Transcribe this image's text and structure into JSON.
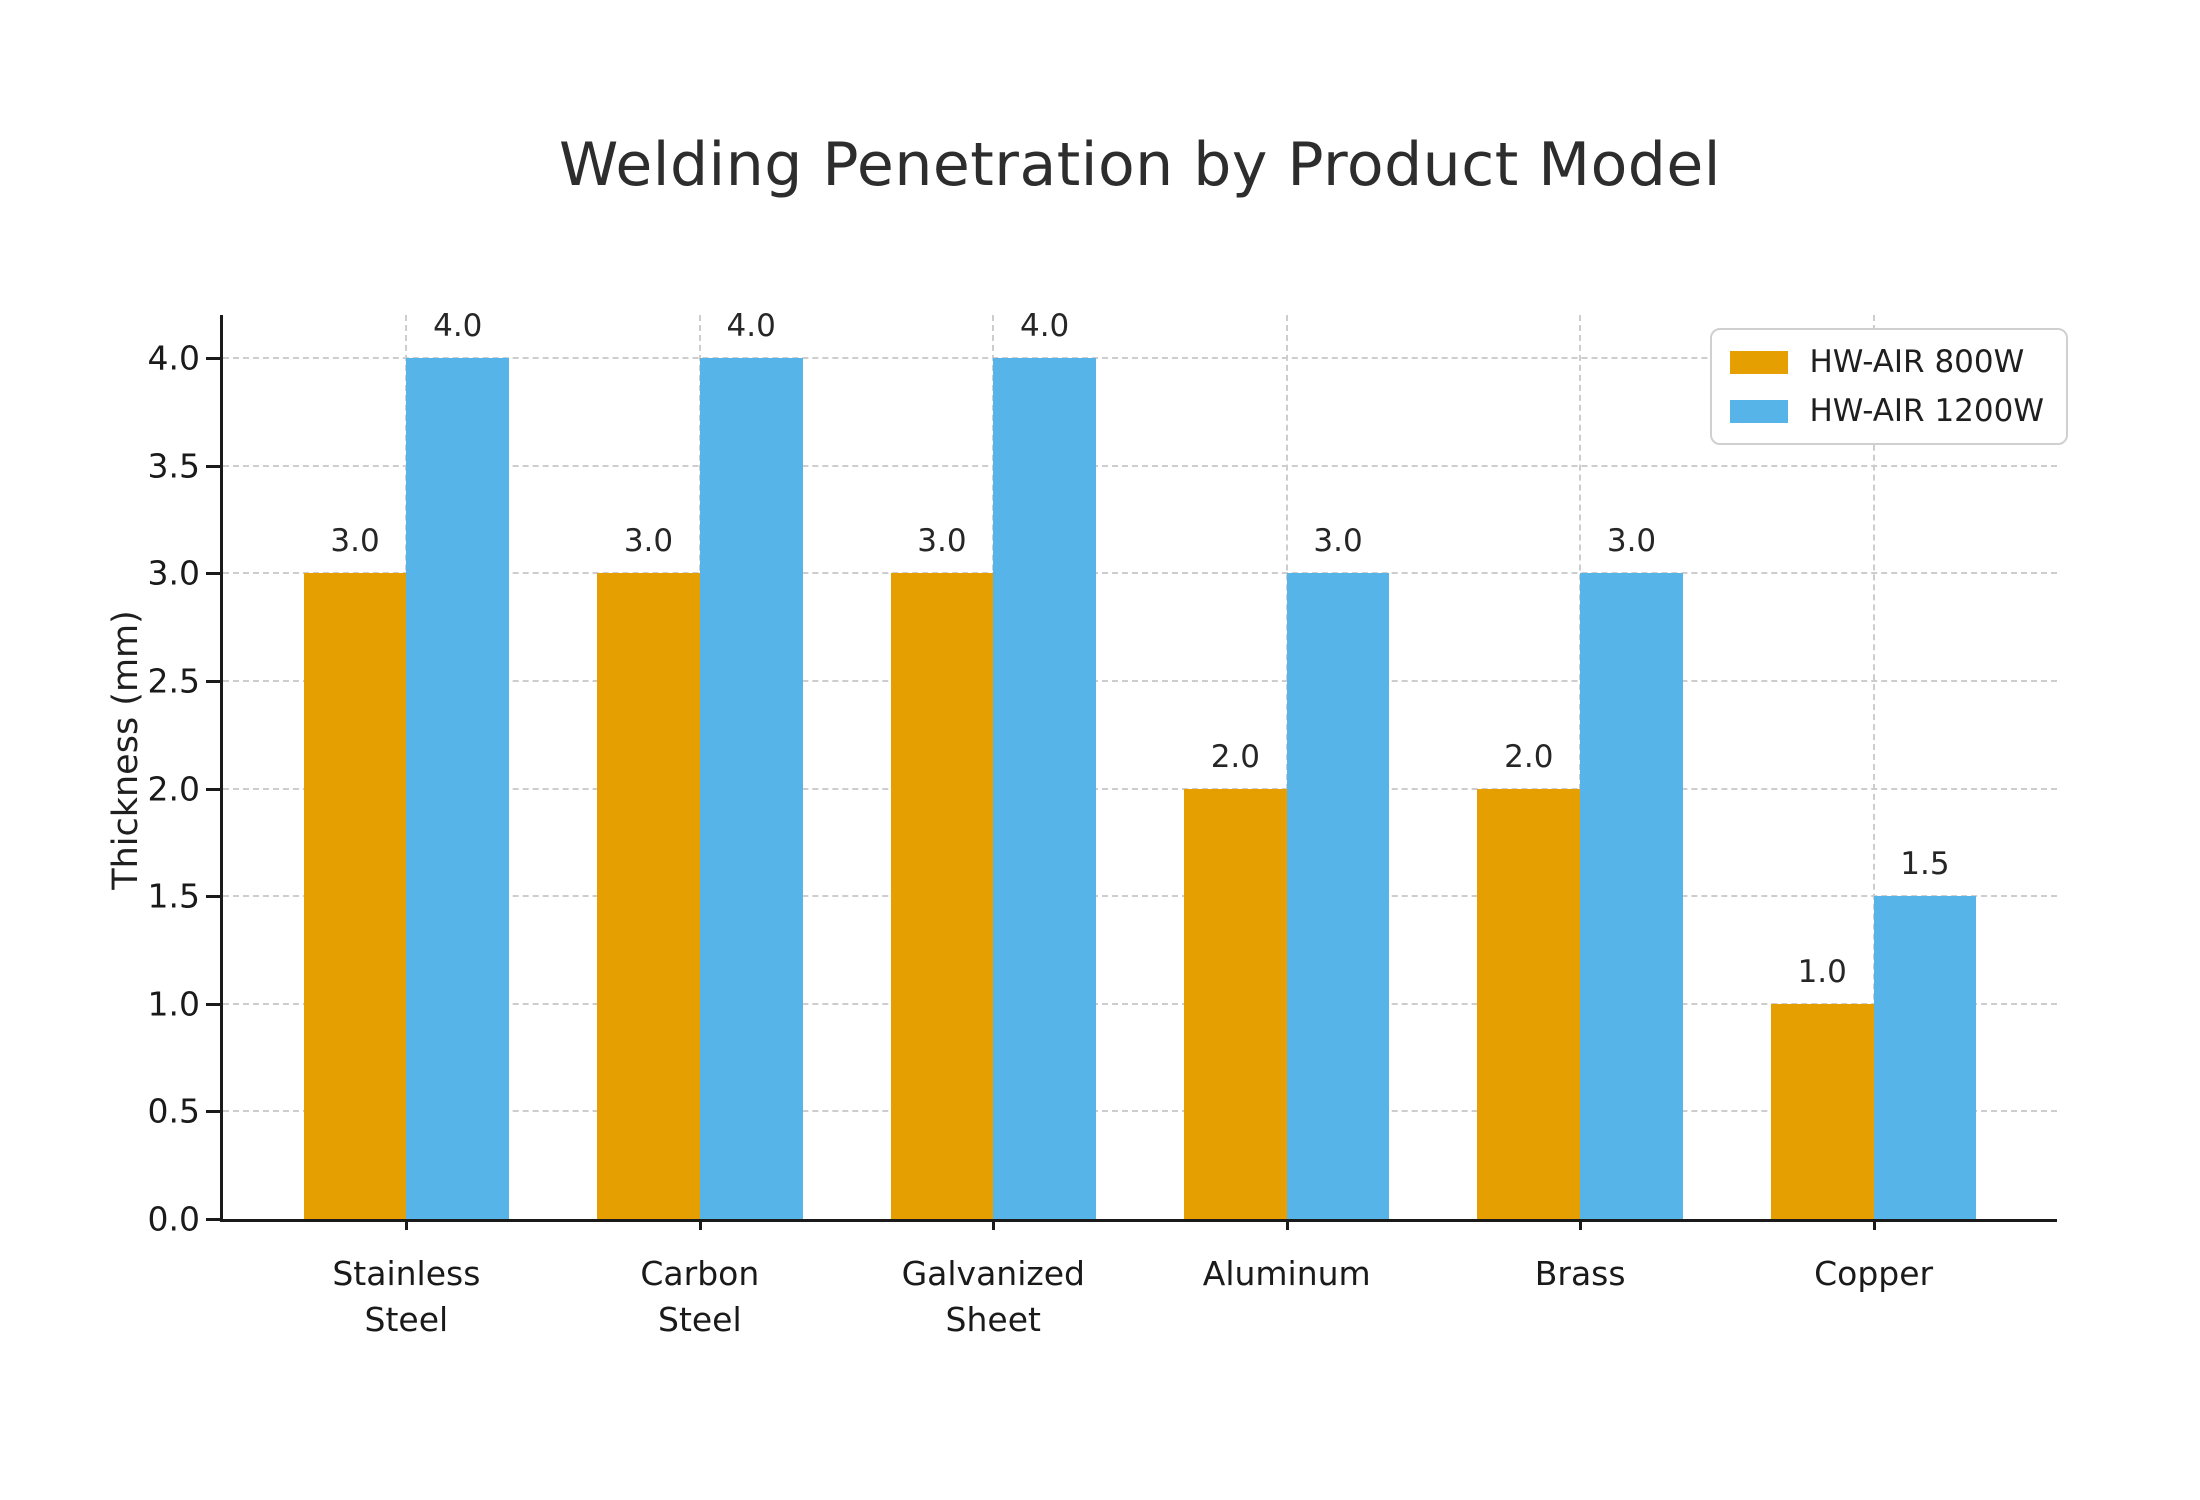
{
  "chart_data": {
    "type": "bar",
    "title": "Welding Penetration by Product Model",
    "xlabel": "",
    "ylabel": "Thickness (mm)",
    "categories": [
      "Stainless\nSteel",
      "Carbon\nSteel",
      "Galvanized\nSheet",
      "Aluminum",
      "Brass",
      "Copper"
    ],
    "series": [
      {
        "name": "HW-AIR 800W",
        "color": "#E69F00",
        "values": [
          3.0,
          3.0,
          3.0,
          2.0,
          2.0,
          1.0
        ]
      },
      {
        "name": "HW-AIR 1200W",
        "color": "#56B4E9",
        "values": [
          4.0,
          4.0,
          4.0,
          3.0,
          3.0,
          1.5
        ]
      }
    ],
    "bar_value_labels": {
      "series_800w": [
        "3.0",
        "3.0",
        "3.0",
        "2.0",
        "2.0",
        "1.0"
      ],
      "series_1200w": [
        "4.0",
        "4.0",
        "4.0",
        "3.0",
        "3.0",
        "1.5"
      ]
    },
    "yticks": [
      0.0,
      0.5,
      1.0,
      1.5,
      2.0,
      2.5,
      3.0,
      3.5,
      4.0
    ],
    "ytick_labels": [
      "0.0",
      "0.5",
      "1.0",
      "1.5",
      "2.0",
      "2.5",
      "3.0",
      "3.5",
      "4.0"
    ],
    "ylim": [
      0,
      4.2
    ],
    "grid": {
      "horizontal": true,
      "vertical": true,
      "style": "dashed",
      "color": "#cdcdcd"
    },
    "legend": {
      "position": "upper right",
      "items": [
        "HW-AIR 800W",
        "HW-AIR 1200W"
      ]
    }
  },
  "colors": {
    "series_800w": "#E69F00",
    "series_1200w": "#56B4E9",
    "background": "#ffffff",
    "gridline": "#cdcdcd",
    "axis": "#1a1a1a",
    "text": "#1f1f1f"
  }
}
